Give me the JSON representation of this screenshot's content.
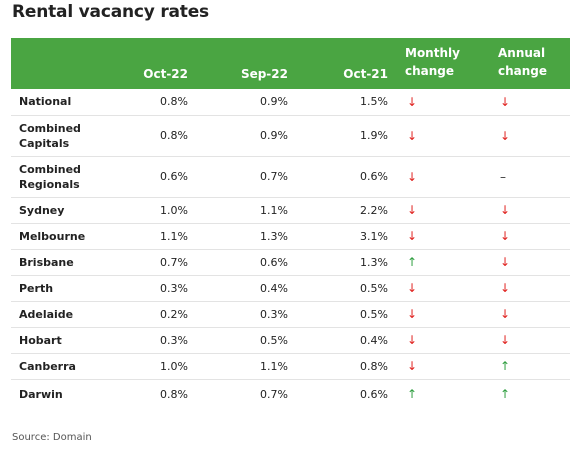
{
  "title": "Rental vacancy rates",
  "headers": {
    "name": "",
    "oct22": "Oct-22",
    "sep22": "Sep-22",
    "oct21": "Oct-21",
    "monthly_line1": "Monthly",
    "monthly_line2": "change",
    "annual_line1": "Annual",
    "annual_line2": "change"
  },
  "symbols": {
    "down": "↓",
    "up": "↑",
    "flat": "–"
  },
  "colors": {
    "header_bg": "#4aa542",
    "down": "#e0221f",
    "up": "#2e9e3f"
  },
  "rows": [
    {
      "name_line1": "National",
      "name_line2": "",
      "oct22": "0.8%",
      "sep22": "0.9%",
      "oct21": "1.5%",
      "monthly": "down",
      "annual": "down"
    },
    {
      "name_line1": "Combined",
      "name_line2": "Capitals",
      "oct22": "0.8%",
      "sep22": "0.9%",
      "oct21": "1.9%",
      "monthly": "down",
      "annual": "down"
    },
    {
      "name_line1": "Combined",
      "name_line2": "Regionals",
      "oct22": "0.6%",
      "sep22": "0.7%",
      "oct21": "0.6%",
      "monthly": "down",
      "annual": "flat"
    },
    {
      "name_line1": "Sydney",
      "name_line2": "",
      "oct22": "1.0%",
      "sep22": "1.1%",
      "oct21": "2.2%",
      "monthly": "down",
      "annual": "down"
    },
    {
      "name_line1": "Melbourne",
      "name_line2": "",
      "oct22": "1.1%",
      "sep22": "1.3%",
      "oct21": "3.1%",
      "monthly": "down",
      "annual": "down"
    },
    {
      "name_line1": "Brisbane",
      "name_line2": "",
      "oct22": "0.7%",
      "sep22": "0.6%",
      "oct21": "1.3%",
      "monthly": "up",
      "annual": "down"
    },
    {
      "name_line1": "Perth",
      "name_line2": "",
      "oct22": "0.3%",
      "sep22": "0.4%",
      "oct21": "0.5%",
      "monthly": "down",
      "annual": "down"
    },
    {
      "name_line1": "Adelaide",
      "name_line2": "",
      "oct22": "0.2%",
      "sep22": "0.3%",
      "oct21": "0.5%",
      "monthly": "down",
      "annual": "down"
    },
    {
      "name_line1": "Hobart",
      "name_line2": "",
      "oct22": "0.3%",
      "sep22": "0.5%",
      "oct21": "0.4%",
      "monthly": "down",
      "annual": "down"
    },
    {
      "name_line1": "Canberra",
      "name_line2": "",
      "oct22": "1.0%",
      "sep22": "1.1%",
      "oct21": "0.8%",
      "monthly": "down",
      "annual": "up"
    },
    {
      "name_line1": "Darwin",
      "name_line2": "",
      "oct22": "0.8%",
      "sep22": "0.7%",
      "oct21": "0.6%",
      "monthly": "up",
      "annual": "up"
    }
  ],
  "source": "Source: Domain"
}
